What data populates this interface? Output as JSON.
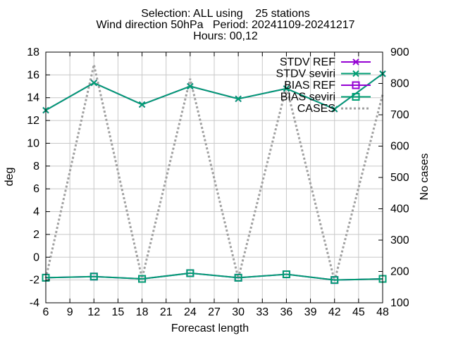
{
  "chart_data": {
    "type": "line",
    "title_lines": [
      "Selection: ALL using    25 stations",
      "Wind direction 50hPa   Period: 20241109-20241217",
      "Hours: 00,12"
    ],
    "xlabel": "Forecast length",
    "ylabel": "deg",
    "y2label": "No cases",
    "x": [
      6,
      12,
      18,
      24,
      30,
      36,
      42,
      48
    ],
    "xticks": [
      6,
      9,
      12,
      15,
      18,
      21,
      24,
      27,
      30,
      33,
      36,
      39,
      42,
      45,
      48
    ],
    "xlim": [
      6,
      48
    ],
    "ylim": [
      -4,
      18
    ],
    "yticks": [
      -4,
      -2,
      0,
      2,
      4,
      6,
      8,
      10,
      12,
      14,
      16,
      18
    ],
    "y2lim": [
      100,
      900
    ],
    "y2ticks": [
      100,
      200,
      300,
      400,
      500,
      600,
      700,
      800,
      900
    ],
    "grid": true,
    "legend_position": "top-right",
    "series": [
      {
        "name": "STDV REF",
        "axis": "y",
        "color": "#9400d3",
        "marker": "x",
        "style": "solid",
        "values": [
          12.9,
          15.3,
          13.4,
          15.0,
          13.9,
          14.8,
          13.0,
          16.1
        ]
      },
      {
        "name": "STDV seviri",
        "axis": "y",
        "color": "#009e73",
        "marker": "x",
        "style": "solid",
        "values": [
          12.9,
          15.3,
          13.4,
          15.0,
          13.9,
          14.8,
          13.0,
          16.1
        ]
      },
      {
        "name": "BIAS REF",
        "axis": "y",
        "color": "#9400d3",
        "marker": "square",
        "style": "solid",
        "values": [
          -1.8,
          -1.7,
          -1.9,
          -1.4,
          -1.8,
          -1.5,
          -2.0,
          -1.9
        ]
      },
      {
        "name": "BIAS seviri",
        "axis": "y",
        "color": "#009e73",
        "marker": "square",
        "style": "solid",
        "values": [
          -1.8,
          -1.7,
          -1.9,
          -1.4,
          -1.8,
          -1.5,
          -2.0,
          -1.9
        ]
      },
      {
        "name": "CASES",
        "axis": "y2",
        "color": "#a0a0a0",
        "marker": "none",
        "style": "dotted",
        "values": [
          178,
          860,
          178,
          815,
          178,
          790,
          170,
          765
        ]
      }
    ]
  }
}
